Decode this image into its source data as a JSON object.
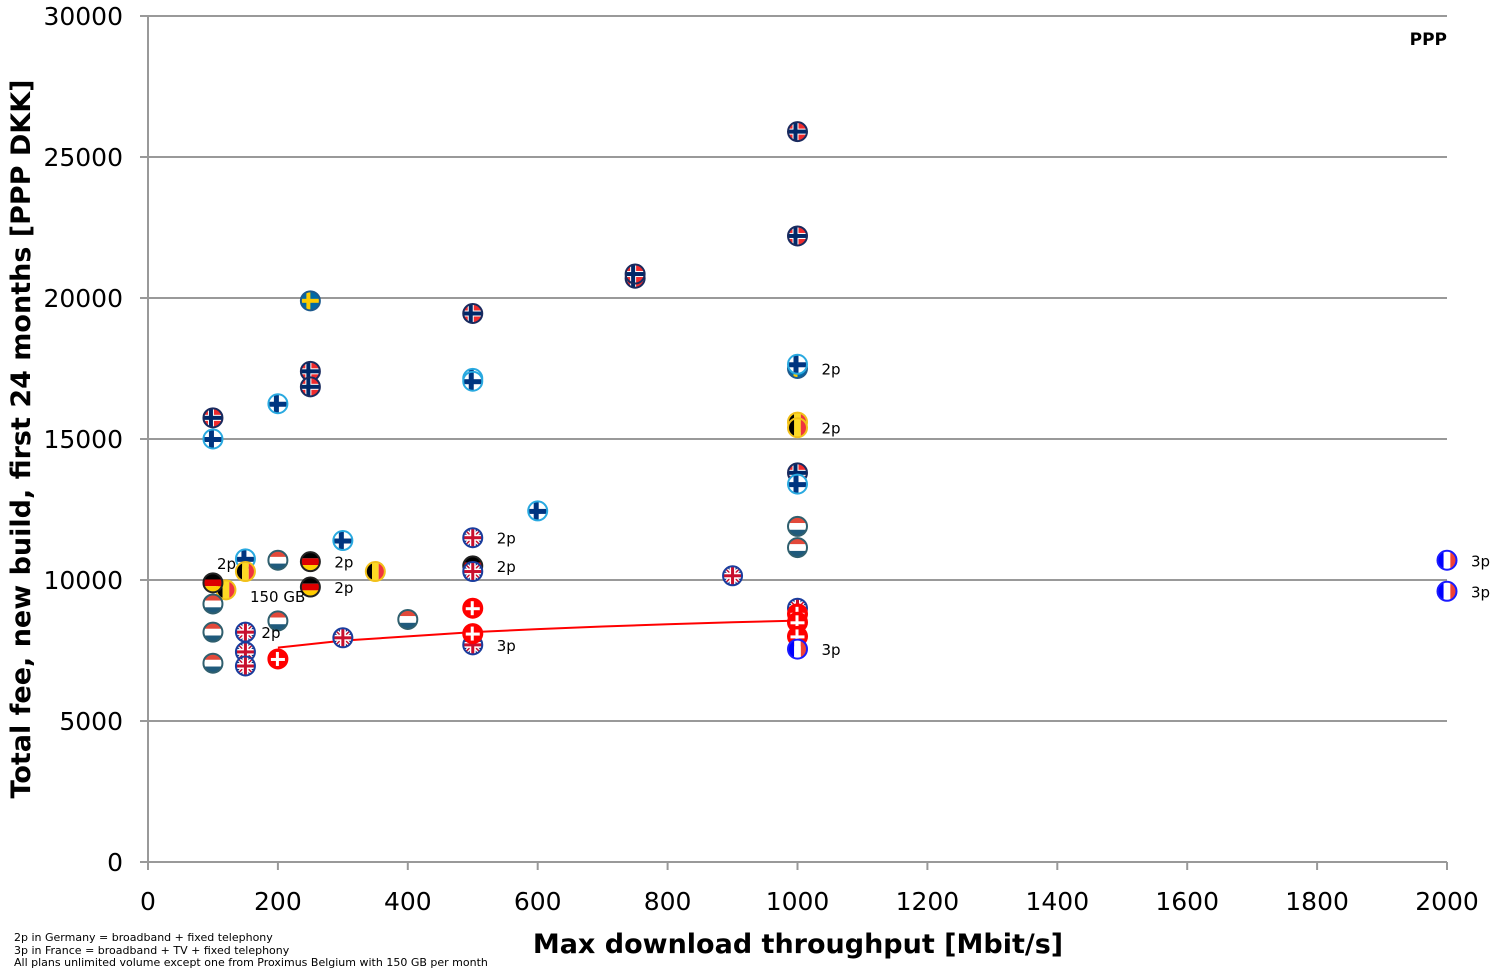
{
  "chart_data": {
    "type": "scatter",
    "title": "",
    "corner_label": "PPP",
    "xlabel": "Max download throughput [Mbit/s]",
    "ylabel": "Total fee, new build, first 24 months [PPP DKK]",
    "xlim": [
      0,
      2000
    ],
    "ylim": [
      0,
      30000
    ],
    "x_ticks": [
      0,
      200,
      400,
      600,
      800,
      1000,
      1200,
      1400,
      1600,
      1800,
      2000
    ],
    "y_ticks": [
      0,
      5000,
      10000,
      15000,
      20000,
      25000,
      30000
    ],
    "grid": "horizontal",
    "legend": "none (country flag markers)",
    "flag_colors": {
      "NO": [
        "#ef2b2d",
        "#ffffff",
        "#002868"
      ],
      "SE": [
        "#006aa7",
        "#fecc00"
      ],
      "FI": [
        "#ffffff",
        "#003580",
        "#29a9e0"
      ],
      "DK": [
        "#ff0000",
        "#ffffff"
      ],
      "NL": [
        "#e2493a",
        "#ffffff",
        "#1f5a7c"
      ],
      "DE": [
        "#000000",
        "#dd0000",
        "#ffce00"
      ],
      "BE": [
        "#000000",
        "#fdda24",
        "#ef3340"
      ],
      "UK": [
        "#012169",
        "#ffffff",
        "#c8102e"
      ],
      "FR": [
        "#0000ff",
        "#ffffff",
        "#ef4135"
      ]
    },
    "series": [
      {
        "name": "Norway",
        "code": "NO",
        "points": [
          [
            1000,
            25900
          ],
          [
            1000,
            22200
          ],
          [
            750,
            20700
          ],
          [
            750,
            20850
          ],
          [
            500,
            19450
          ],
          [
            250,
            17400
          ],
          [
            250,
            16850
          ],
          [
            100,
            15750
          ],
          [
            1000,
            13800
          ]
        ]
      },
      {
        "name": "Sweden",
        "code": "SE",
        "points": [
          [
            250,
            19900
          ],
          [
            1000,
            17500
          ]
        ]
      },
      {
        "name": "Finland",
        "code": "FI",
        "points": [
          [
            1000,
            17650
          ],
          [
            500,
            17150
          ],
          [
            500,
            17050
          ],
          [
            200,
            16250
          ],
          [
            100,
            15000
          ],
          [
            1000,
            13400
          ],
          [
            600,
            12450
          ],
          [
            300,
            11400
          ],
          [
            150,
            10750
          ]
        ]
      },
      {
        "name": "Belgium",
        "code": "BE",
        "points": [
          [
            1000,
            15600
          ],
          [
            1000,
            15400
          ],
          [
            150,
            10300
          ],
          [
            350,
            10300
          ],
          [
            120,
            9650
          ]
        ]
      },
      {
        "name": "Netherlands",
        "code": "NL",
        "points": [
          [
            1000,
            11900
          ],
          [
            1000,
            11150
          ],
          [
            200,
            10700
          ],
          [
            100,
            9150
          ],
          [
            400,
            8600
          ],
          [
            200,
            8550
          ],
          [
            100,
            8150
          ],
          [
            100,
            7050
          ]
        ]
      },
      {
        "name": "Germany",
        "code": "DE",
        "points": [
          [
            500,
            10500
          ],
          [
            250,
            10650
          ],
          [
            250,
            9750
          ],
          [
            100,
            9900
          ]
        ]
      },
      {
        "name": "United Kingdom",
        "code": "UK",
        "points": [
          [
            500,
            11500
          ],
          [
            500,
            10300
          ],
          [
            900,
            10150
          ],
          [
            1000,
            9000
          ],
          [
            150,
            8150
          ],
          [
            300,
            7950
          ],
          [
            500,
            7700
          ],
          [
            150,
            7450
          ],
          [
            150,
            6950
          ]
        ]
      },
      {
        "name": "Denmark",
        "code": "DK",
        "points": [
          [
            500,
            9000
          ],
          [
            1000,
            8800
          ],
          [
            1000,
            8500
          ],
          [
            500,
            8100
          ],
          [
            1000,
            8000
          ],
          [
            200,
            7200
          ]
        ]
      },
      {
        "name": "France",
        "code": "FR",
        "points": [
          [
            2000,
            10700
          ],
          [
            2000,
            9600
          ],
          [
            1000,
            7550
          ]
        ]
      }
    ],
    "annotations": [
      {
        "text": "2p",
        "x": 1000,
        "y": 17500
      },
      {
        "text": "2p",
        "x": 1000,
        "y": 15400
      },
      {
        "text": "2p",
        "x": 500,
        "y": 11500
      },
      {
        "text": "2p",
        "x": 500,
        "y": 10500
      },
      {
        "text": "2p",
        "x": 250,
        "y": 10650
      },
      {
        "text": "2p",
        "x": 250,
        "y": 9750
      },
      {
        "text": "2p",
        "x": 100,
        "y": 9900
      },
      {
        "text": "150 GB",
        "x": 120,
        "y": 9650
      },
      {
        "text": "2p",
        "x": 150,
        "y": 8150
      },
      {
        "text": "3p",
        "x": 500,
        "y": 7700
      },
      {
        "text": "3p",
        "x": 1000,
        "y": 7550
      },
      {
        "text": "3p",
        "x": 2000,
        "y": 10700
      },
      {
        "text": "3p",
        "x": 2000,
        "y": 9600
      }
    ],
    "trendline": {
      "name": "Denmark trend",
      "color": "#ff0000",
      "points": [
        [
          200,
          7600
        ],
        [
          300,
          7850
        ],
        [
          400,
          8000
        ],
        [
          500,
          8150
        ],
        [
          600,
          8260
        ],
        [
          700,
          8350
        ],
        [
          800,
          8430
        ],
        [
          900,
          8500
        ],
        [
          1000,
          8560
        ]
      ]
    }
  },
  "footnotes": [
    "2p in Germany = broadband + fixed telephony",
    "3p in France = broadband + TV + fixed telephony",
    "All plans unlimited volume except one from Proximus Belgium with 150 GB per month"
  ]
}
